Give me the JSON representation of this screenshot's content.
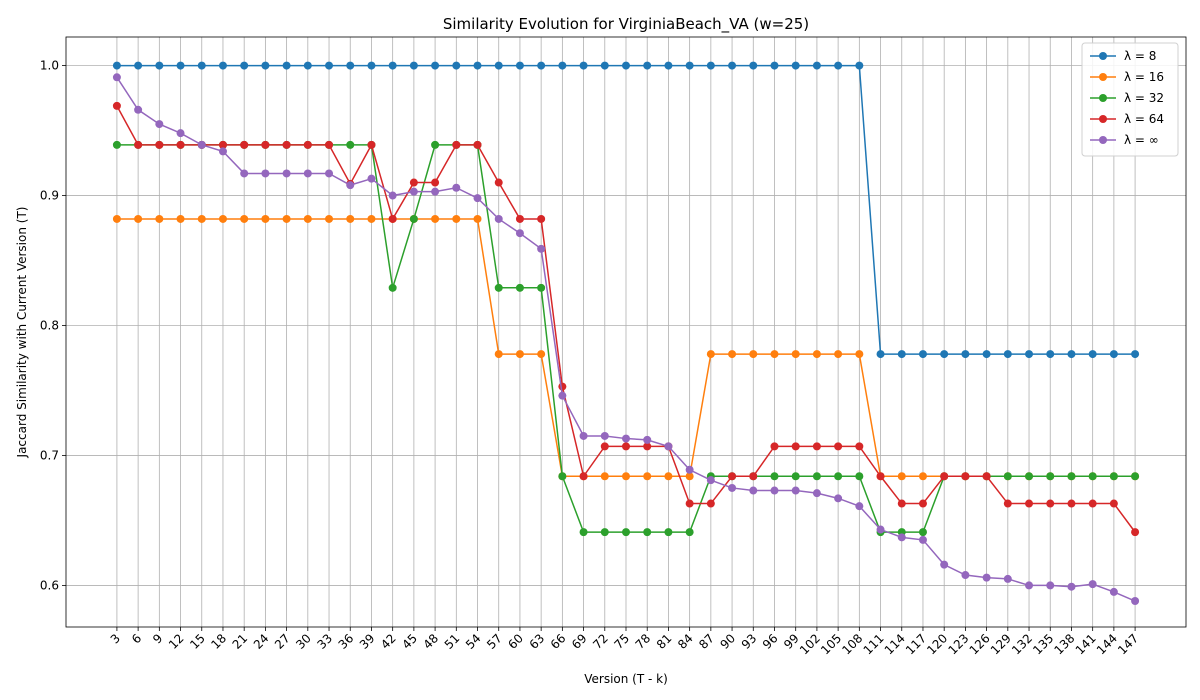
{
  "chart_data": {
    "type": "line",
    "title": "Similarity Evolution for VirginiaBeach_VA (w=25)",
    "xlabel": "Version (T - k)",
    "ylabel": "Jaccard Similarity with Current Version (T)",
    "ylim": [
      0.568,
      1.022
    ],
    "yticks": [
      0.6,
      0.7,
      0.8,
      0.9,
      1.0
    ],
    "ytick_labels": [
      "0.6",
      "0.7",
      "0.8",
      "0.9",
      "1.0"
    ],
    "grid": true,
    "legend_position": "top-right",
    "x": [
      3,
      6,
      9,
      12,
      15,
      18,
      21,
      24,
      27,
      30,
      33,
      36,
      39,
      42,
      45,
      48,
      51,
      54,
      57,
      60,
      63,
      66,
      69,
      72,
      75,
      78,
      81,
      84,
      87,
      90,
      93,
      96,
      99,
      102,
      105,
      108,
      111,
      114,
      117,
      120,
      123,
      126,
      129,
      132,
      135,
      138,
      141,
      144,
      147
    ],
    "series": [
      {
        "name": "λ = 8",
        "color": "#1f77b4",
        "values": [
          1,
          1,
          1,
          1,
          1,
          1,
          1,
          1,
          1,
          1,
          1,
          1,
          1,
          1,
          1,
          1,
          1,
          1,
          1,
          1,
          1,
          1,
          1,
          1,
          1,
          1,
          1,
          1,
          1,
          1,
          1,
          1,
          1,
          1,
          1,
          1,
          0.778,
          0.778,
          0.778,
          0.778,
          0.778,
          0.778,
          0.778,
          0.778,
          0.778,
          0.778,
          0.778,
          0.778,
          0.778
        ]
      },
      {
        "name": "λ = 16",
        "color": "#ff7f0e",
        "values": [
          0.882,
          0.882,
          0.882,
          0.882,
          0.882,
          0.882,
          0.882,
          0.882,
          0.882,
          0.882,
          0.882,
          0.882,
          0.882,
          0.882,
          0.882,
          0.882,
          0.882,
          0.882,
          0.778,
          0.778,
          0.778,
          0.684,
          0.684,
          0.684,
          0.684,
          0.684,
          0.684,
          0.684,
          0.778,
          0.778,
          0.778,
          0.778,
          0.778,
          0.778,
          0.778,
          0.778,
          0.684,
          0.684,
          0.684,
          0.684,
          0.684,
          0.684,
          0.684,
          0.684,
          0.684,
          0.684,
          0.684,
          0.684,
          0.684
        ]
      },
      {
        "name": "λ = 32",
        "color": "#2ca02c",
        "values": [
          0.939,
          0.939,
          0.939,
          0.939,
          0.939,
          0.939,
          0.939,
          0.939,
          0.939,
          0.939,
          0.939,
          0.939,
          0.939,
          0.829,
          0.882,
          0.939,
          0.939,
          0.939,
          0.829,
          0.829,
          0.829,
          0.684,
          0.641,
          0.641,
          0.641,
          0.641,
          0.641,
          0.641,
          0.684,
          0.684,
          0.684,
          0.684,
          0.684,
          0.684,
          0.684,
          0.684,
          0.641,
          0.641,
          0.641,
          0.684,
          0.684,
          0.684,
          0.684,
          0.684,
          0.684,
          0.684,
          0.684,
          0.684,
          0.684
        ]
      },
      {
        "name": "λ = 64",
        "color": "#d62728",
        "values": [
          0.969,
          0.939,
          0.939,
          0.939,
          0.939,
          0.939,
          0.939,
          0.939,
          0.939,
          0.939,
          0.939,
          0.909,
          0.939,
          0.882,
          0.91,
          0.91,
          0.939,
          0.939,
          0.91,
          0.882,
          0.882,
          0.753,
          0.684,
          0.707,
          0.707,
          0.707,
          0.707,
          0.663,
          0.663,
          0.684,
          0.684,
          0.707,
          0.707,
          0.707,
          0.707,
          0.707,
          0.684,
          0.663,
          0.663,
          0.684,
          0.684,
          0.684,
          0.663,
          0.663,
          0.663,
          0.663,
          0.663,
          0.663,
          0.641
        ]
      },
      {
        "name": "λ = ∞",
        "color": "#9467bd",
        "values": [
          0.991,
          0.966,
          0.955,
          0.948,
          0.939,
          0.934,
          0.917,
          0.917,
          0.917,
          0.917,
          0.917,
          0.908,
          0.913,
          0.9,
          0.903,
          0.903,
          0.906,
          0.898,
          0.882,
          0.871,
          0.859,
          0.746,
          0.715,
          0.715,
          0.713,
          0.712,
          0.707,
          0.689,
          0.681,
          0.675,
          0.673,
          0.673,
          0.673,
          0.671,
          0.667,
          0.661,
          0.643,
          0.637,
          0.635,
          0.616,
          0.608,
          0.606,
          0.605,
          0.6,
          0.6,
          0.599,
          0.601,
          0.595,
          0.588
        ]
      }
    ]
  }
}
